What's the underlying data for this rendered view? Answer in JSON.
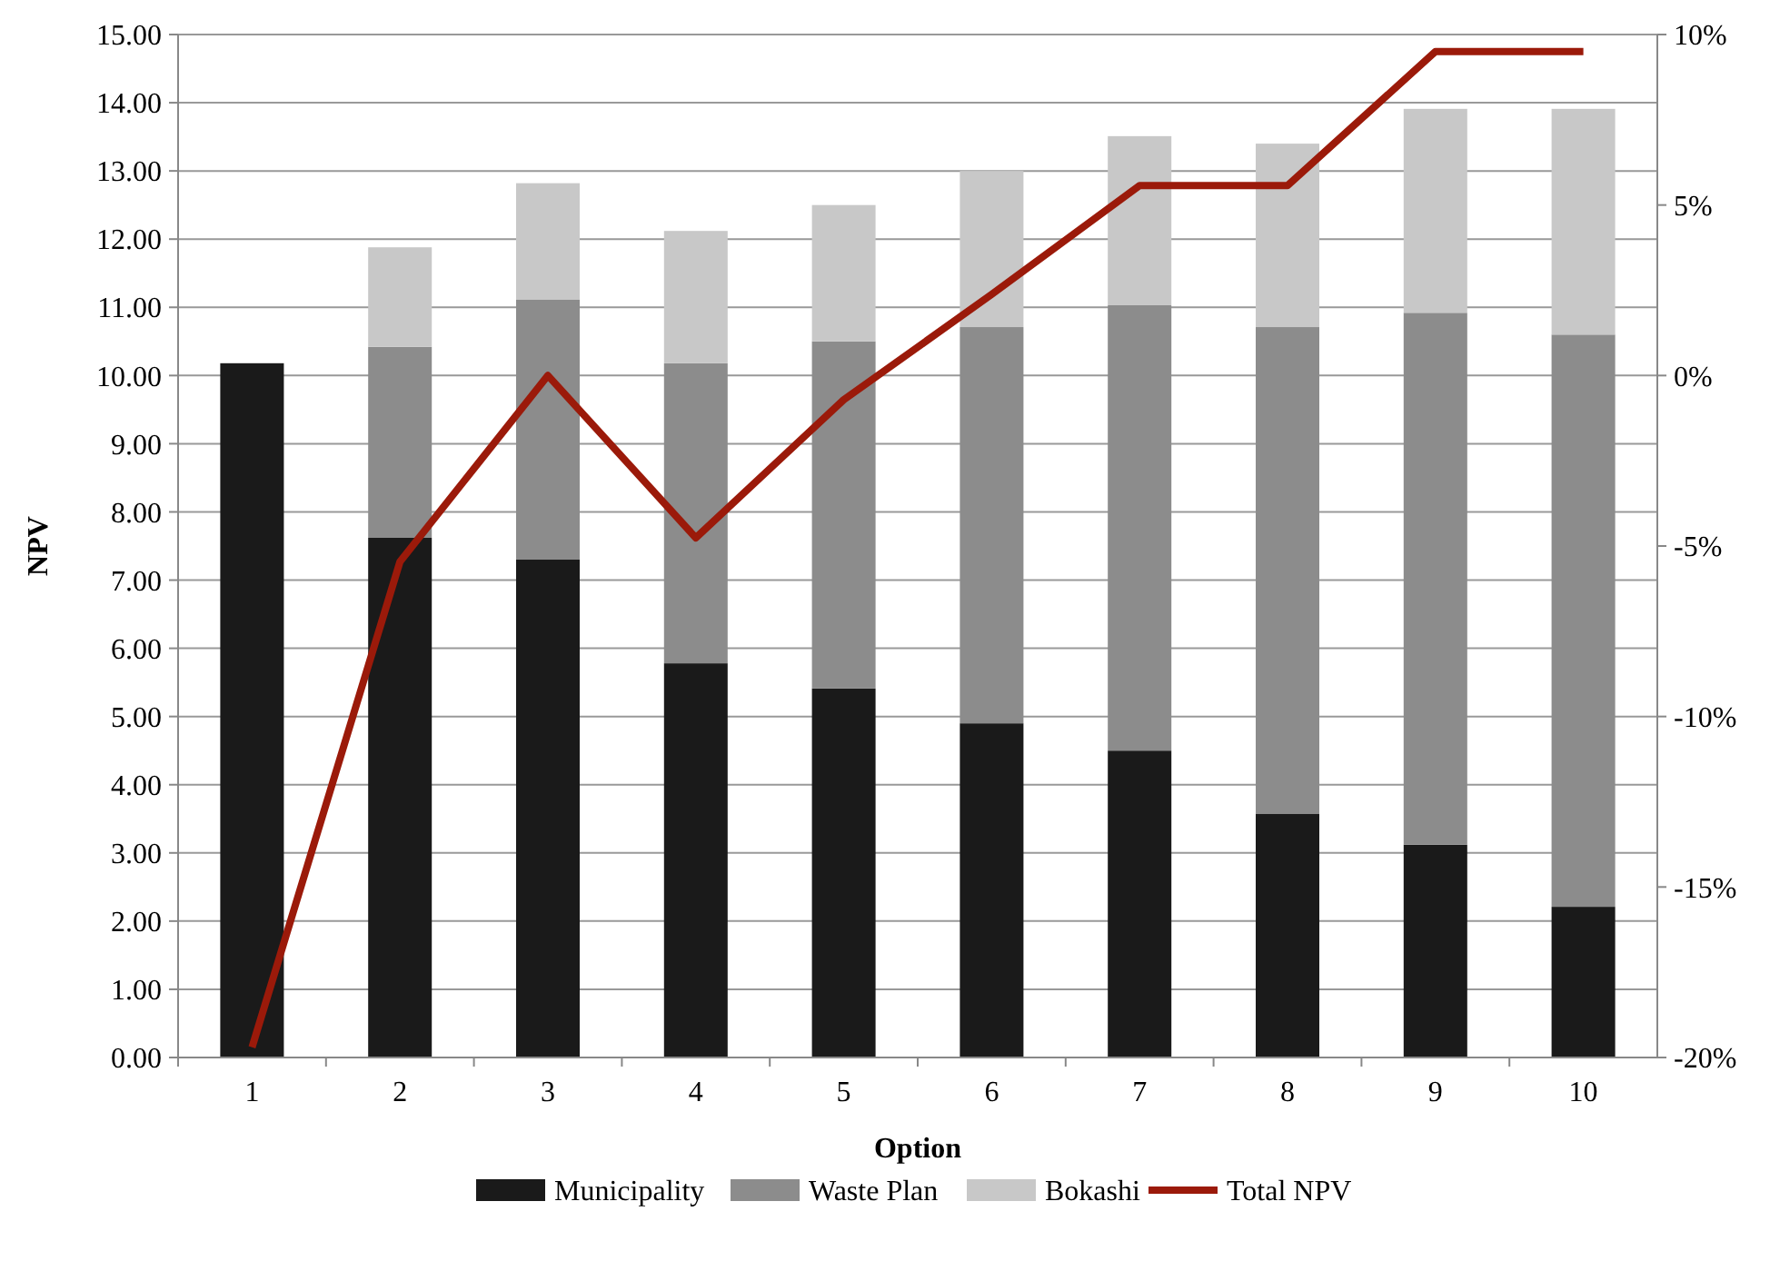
{
  "chart_data": {
    "type": "bar",
    "stacked": true,
    "xlabel": "Option",
    "ylabel": "NPV",
    "categories": [
      "1",
      "2",
      "3",
      "4",
      "5",
      "6",
      "7",
      "8",
      "9",
      "10"
    ],
    "series": [
      {
        "name": "Municipality",
        "color": "#1a1a1a",
        "values": [
          10.18,
          7.62,
          7.3,
          5.78,
          5.41,
          4.9,
          4.5,
          3.57,
          3.12,
          2.21
        ]
      },
      {
        "name": "Waste Plan",
        "color": "#8c8c8c",
        "values": [
          0,
          2.8,
          3.81,
          4.4,
          5.09,
          5.81,
          6.53,
          7.14,
          7.8,
          8.39
        ]
      },
      {
        "name": "Bokashi",
        "color": "#c8c8c8",
        "values": [
          0,
          1.46,
          1.71,
          1.94,
          2.0,
          2.29,
          2.48,
          2.69,
          2.99,
          3.31
        ]
      },
      {
        "name": "Total NPV",
        "type": "line",
        "axis": "y2",
        "color": "#9b1a0a",
        "values": [
          -19.7,
          -5.46,
          0,
          -4.76,
          -0.71,
          2.38,
          5.57,
          5.57,
          9.5,
          9.5
        ]
      }
    ],
    "ylim": [
      0,
      15
    ],
    "yticks": [
      {
        "value": 0,
        "label": "0.00"
      },
      {
        "value": 1,
        "label": "1.00"
      },
      {
        "value": 2,
        "label": "2.00"
      },
      {
        "value": 3,
        "label": "3.00"
      },
      {
        "value": 4,
        "label": "4.00"
      },
      {
        "value": 5,
        "label": "5.00"
      },
      {
        "value": 6,
        "label": "6.00"
      },
      {
        "value": 7,
        "label": "7.00"
      },
      {
        "value": 8,
        "label": "8.00"
      },
      {
        "value": 9,
        "label": "9.00"
      },
      {
        "value": 10,
        "label": "10.00"
      },
      {
        "value": 11,
        "label": "11.00"
      },
      {
        "value": 12,
        "label": "12.00"
      },
      {
        "value": 13,
        "label": "13.00"
      },
      {
        "value": 14,
        "label": "14.00"
      },
      {
        "value": 15,
        "label": "15.00"
      }
    ],
    "y2lim": [
      -20,
      10
    ],
    "y2ticks": [
      {
        "value": -20,
        "label": "-20%"
      },
      {
        "value": -15,
        "label": "-15%"
      },
      {
        "value": -10,
        "label": "-10%"
      },
      {
        "value": -5,
        "label": "-5%"
      },
      {
        "value": 0,
        "label": "0%"
      },
      {
        "value": 5,
        "label": "5%"
      },
      {
        "value": 10,
        "label": "10%"
      }
    ],
    "grid": "y",
    "legend": "bottom",
    "line_style": "solid",
    "marker": "none"
  }
}
